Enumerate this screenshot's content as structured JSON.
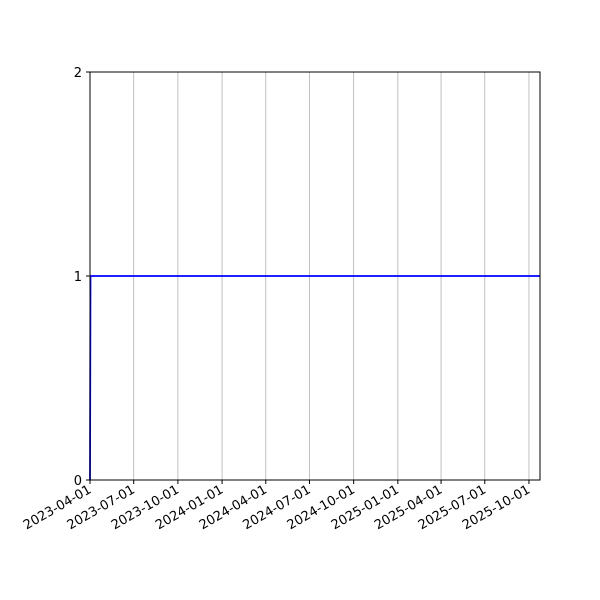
{
  "chart_data": {
    "type": "line",
    "title": "",
    "xlabel": "",
    "ylabel": "",
    "x_type": "date",
    "xlim": [
      "2023-04-01",
      "2025-10-24"
    ],
    "ylim": [
      0,
      2
    ],
    "x_ticks": [
      "2023-04-01",
      "2023-07-01",
      "2023-10-01",
      "2024-01-01",
      "2024-04-01",
      "2024-07-01",
      "2024-10-01",
      "2025-01-01",
      "2025-04-01",
      "2025-07-01",
      "2025-10-01"
    ],
    "y_ticks": [
      "0",
      "1",
      "2"
    ],
    "grid": "x-axis vertical gridlines",
    "series": [
      {
        "color": "#0000ff",
        "points": [
          {
            "x": "2023-04-01",
            "y": 0
          },
          {
            "x": "2023-04-02",
            "y": 1
          },
          {
            "x": "2025-10-24",
            "y": 1
          }
        ]
      }
    ]
  }
}
